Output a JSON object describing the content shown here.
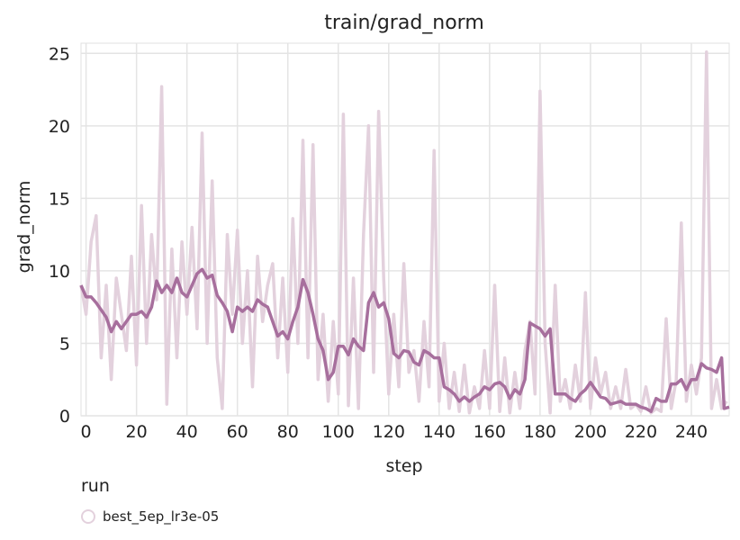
{
  "chart_data": {
    "type": "line",
    "title": "train/grad_norm",
    "xlabel": "step",
    "ylabel": "grad_norm",
    "xlim": [
      -2,
      255
    ],
    "ylim": [
      0,
      25.7
    ],
    "xticks": [
      0,
      20,
      40,
      60,
      80,
      100,
      120,
      140,
      160,
      180,
      200,
      220,
      240
    ],
    "yticks": [
      0,
      5,
      10,
      15,
      20,
      25
    ],
    "grid": true,
    "legend": {
      "title": "run",
      "position": "bottom-left"
    },
    "series": [
      {
        "name": "best_5ep_lr3e-05",
        "raw_color": "#e3d1dd",
        "smooth_color": "#a76f9d",
        "raw": [
          [
            -2,
            9
          ],
          [
            0,
            7
          ],
          [
            2,
            12
          ],
          [
            4,
            13.8
          ],
          [
            6,
            4
          ],
          [
            8,
            9
          ],
          [
            10,
            2.5
          ],
          [
            12,
            9.5
          ],
          [
            14,
            7
          ],
          [
            16,
            4.5
          ],
          [
            18,
            11
          ],
          [
            20,
            3.5
          ],
          [
            22,
            14.5
          ],
          [
            24,
            5
          ],
          [
            26,
            12.5
          ],
          [
            28,
            8
          ],
          [
            30,
            22.7
          ],
          [
            32,
            0.8
          ],
          [
            34,
            11.5
          ],
          [
            36,
            4
          ],
          [
            38,
            12
          ],
          [
            40,
            7
          ],
          [
            42,
            13
          ],
          [
            44,
            6
          ],
          [
            46,
            19.5
          ],
          [
            48,
            5
          ],
          [
            50,
            16.2
          ],
          [
            52,
            4
          ],
          [
            54,
            0.5
          ],
          [
            56,
            12.5
          ],
          [
            58,
            7
          ],
          [
            60,
            12.8
          ],
          [
            62,
            5
          ],
          [
            64,
            10
          ],
          [
            66,
            2
          ],
          [
            68,
            11
          ],
          [
            70,
            6.5
          ],
          [
            72,
            9
          ],
          [
            74,
            10.5
          ],
          [
            76,
            4
          ],
          [
            78,
            9.5
          ],
          [
            80,
            3
          ],
          [
            82,
            13.6
          ],
          [
            84,
            5
          ],
          [
            86,
            19
          ],
          [
            88,
            4
          ],
          [
            90,
            18.7
          ],
          [
            92,
            2.5
          ],
          [
            94,
            7
          ],
          [
            96,
            1
          ],
          [
            98,
            6.5
          ],
          [
            100,
            1.5
          ],
          [
            102,
            20.8
          ],
          [
            104,
            0.7
          ],
          [
            106,
            9.5
          ],
          [
            108,
            0.5
          ],
          [
            110,
            12.5
          ],
          [
            112,
            20
          ],
          [
            114,
            3
          ],
          [
            116,
            21
          ],
          [
            118,
            9.5
          ],
          [
            120,
            1.5
          ],
          [
            122,
            7
          ],
          [
            124,
            2
          ],
          [
            126,
            10.5
          ],
          [
            128,
            3
          ],
          [
            130,
            4.5
          ],
          [
            132,
            1
          ],
          [
            134,
            6.5
          ],
          [
            136,
            2
          ],
          [
            138,
            18.3
          ],
          [
            140,
            1
          ],
          [
            142,
            5
          ],
          [
            144,
            0.5
          ],
          [
            146,
            3
          ],
          [
            148,
            0.3
          ],
          [
            150,
            3.5
          ],
          [
            152,
            0.2
          ],
          [
            154,
            2
          ],
          [
            156,
            0.5
          ],
          [
            158,
            4.5
          ],
          [
            160,
            0.5
          ],
          [
            162,
            9
          ],
          [
            164,
            0.3
          ],
          [
            166,
            4
          ],
          [
            168,
            0.2
          ],
          [
            170,
            3
          ],
          [
            172,
            0.5
          ],
          [
            174,
            4.5
          ],
          [
            176,
            6.5
          ],
          [
            178,
            1.5
          ],
          [
            180,
            22.4
          ],
          [
            182,
            5
          ],
          [
            184,
            0.2
          ],
          [
            186,
            9
          ],
          [
            188,
            1
          ],
          [
            190,
            2.5
          ],
          [
            192,
            0.5
          ],
          [
            194,
            3.5
          ],
          [
            196,
            1
          ],
          [
            198,
            8.5
          ],
          [
            200,
            0.5
          ],
          [
            202,
            4
          ],
          [
            204,
            1.5
          ],
          [
            206,
            3
          ],
          [
            208,
            0.5
          ],
          [
            210,
            2
          ],
          [
            212,
            0.5
          ],
          [
            214,
            3.2
          ],
          [
            216,
            0.5
          ],
          [
            218,
            0.8
          ],
          [
            220,
            0.3
          ],
          [
            222,
            2
          ],
          [
            224,
            0.2
          ],
          [
            226,
            0.5
          ],
          [
            228,
            0.3
          ],
          [
            230,
            6.7
          ],
          [
            232,
            0.5
          ],
          [
            234,
            2.5
          ],
          [
            236,
            13.3
          ],
          [
            238,
            1
          ],
          [
            240,
            3.5
          ],
          [
            242,
            1.5
          ],
          [
            244,
            4
          ],
          [
            246,
            25.1
          ],
          [
            248,
            0.5
          ],
          [
            250,
            2.5
          ],
          [
            252,
            0.5
          ],
          [
            254,
            1
          ]
        ],
        "smooth": [
          [
            -2,
            9
          ],
          [
            0,
            8.2
          ],
          [
            2,
            8.2
          ],
          [
            4,
            7.8
          ],
          [
            6,
            7.3
          ],
          [
            8,
            6.8
          ],
          [
            10,
            5.8
          ],
          [
            12,
            6.5
          ],
          [
            14,
            6
          ],
          [
            16,
            6.5
          ],
          [
            18,
            7
          ],
          [
            20,
            7
          ],
          [
            22,
            7.2
          ],
          [
            24,
            6.8
          ],
          [
            26,
            7.5
          ],
          [
            28,
            9.3
          ],
          [
            30,
            8.5
          ],
          [
            32,
            9
          ],
          [
            34,
            8.5
          ],
          [
            36,
            9.5
          ],
          [
            38,
            8.5
          ],
          [
            40,
            8.2
          ],
          [
            42,
            9
          ],
          [
            44,
            9.8
          ],
          [
            46,
            10.1
          ],
          [
            48,
            9.5
          ],
          [
            50,
            9.7
          ],
          [
            52,
            8.3
          ],
          [
            54,
            7.8
          ],
          [
            56,
            7.2
          ],
          [
            58,
            5.8
          ],
          [
            60,
            7.5
          ],
          [
            62,
            7.2
          ],
          [
            64,
            7.5
          ],
          [
            66,
            7.2
          ],
          [
            68,
            8
          ],
          [
            70,
            7.7
          ],
          [
            72,
            7.5
          ],
          [
            74,
            6.5
          ],
          [
            76,
            5.5
          ],
          [
            78,
            5.8
          ],
          [
            80,
            5.3
          ],
          [
            82,
            6.5
          ],
          [
            84,
            7.5
          ],
          [
            86,
            9.4
          ],
          [
            88,
            8.5
          ],
          [
            90,
            7
          ],
          [
            92,
            5.3
          ],
          [
            94,
            4.5
          ],
          [
            96,
            2.5
          ],
          [
            98,
            3
          ],
          [
            100,
            4.8
          ],
          [
            102,
            4.8
          ],
          [
            104,
            4.2
          ],
          [
            106,
            5.3
          ],
          [
            108,
            4.8
          ],
          [
            110,
            4.5
          ],
          [
            112,
            7.8
          ],
          [
            114,
            8.5
          ],
          [
            116,
            7.5
          ],
          [
            118,
            7.8
          ],
          [
            120,
            6.7
          ],
          [
            122,
            4.3
          ],
          [
            124,
            4
          ],
          [
            126,
            4.5
          ],
          [
            128,
            4.4
          ],
          [
            130,
            3.7
          ],
          [
            132,
            3.5
          ],
          [
            134,
            4.5
          ],
          [
            136,
            4.3
          ],
          [
            138,
            4
          ],
          [
            140,
            4
          ],
          [
            142,
            2
          ],
          [
            144,
            1.8
          ],
          [
            146,
            1.5
          ],
          [
            148,
            1
          ],
          [
            150,
            1.3
          ],
          [
            152,
            1
          ],
          [
            154,
            1.3
          ],
          [
            156,
            1.5
          ],
          [
            158,
            2
          ],
          [
            160,
            1.8
          ],
          [
            162,
            2.2
          ],
          [
            164,
            2.3
          ],
          [
            166,
            2
          ],
          [
            168,
            1.2
          ],
          [
            170,
            1.8
          ],
          [
            172,
            1.5
          ],
          [
            174,
            2.5
          ],
          [
            176,
            6.4
          ],
          [
            178,
            6.2
          ],
          [
            180,
            6
          ],
          [
            182,
            5.5
          ],
          [
            184,
            6
          ],
          [
            186,
            1.5
          ],
          [
            188,
            1.5
          ],
          [
            190,
            1.5
          ],
          [
            192,
            1.2
          ],
          [
            194,
            1
          ],
          [
            196,
            1.5
          ],
          [
            198,
            1.8
          ],
          [
            200,
            2.3
          ],
          [
            202,
            1.8
          ],
          [
            204,
            1.3
          ],
          [
            206,
            1.2
          ],
          [
            208,
            0.8
          ],
          [
            210,
            0.9
          ],
          [
            212,
            1
          ],
          [
            214,
            0.8
          ],
          [
            216,
            0.8
          ],
          [
            218,
            0.8
          ],
          [
            220,
            0.6
          ],
          [
            222,
            0.5
          ],
          [
            224,
            0.3
          ],
          [
            226,
            1.2
          ],
          [
            228,
            1
          ],
          [
            230,
            1
          ],
          [
            232,
            2.2
          ],
          [
            234,
            2.2
          ],
          [
            236,
            2.5
          ],
          [
            238,
            1.8
          ],
          [
            240,
            2.5
          ],
          [
            242,
            2.5
          ],
          [
            244,
            3.6
          ],
          [
            246,
            3.3
          ],
          [
            248,
            3.2
          ],
          [
            250,
            3
          ],
          [
            252,
            4
          ],
          [
            253,
            0.5
          ],
          [
            255,
            0.6
          ]
        ]
      }
    ]
  }
}
